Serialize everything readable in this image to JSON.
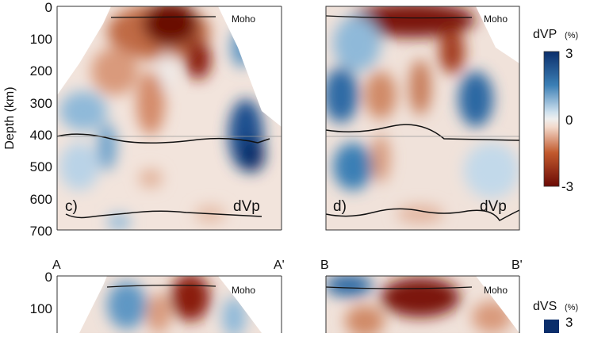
{
  "y_axis": {
    "label": "Depth (km)",
    "ticks": [
      "0",
      "100",
      "200",
      "300",
      "400",
      "500",
      "600",
      "700"
    ]
  },
  "bottom_y_ticks": [
    "0",
    "100"
  ],
  "panels": [
    {
      "id": "c",
      "label": "c)",
      "field": "dVp",
      "moho": "Moho"
    },
    {
      "id": "d",
      "label": "d)",
      "field": "dVp",
      "moho": "Moho"
    },
    {
      "id": "e",
      "start": "A",
      "end": "A'",
      "moho": "Moho"
    },
    {
      "id": "f",
      "start": "B",
      "end": "B'",
      "moho": "Moho"
    }
  ],
  "colorbar_p": {
    "title": "dVP",
    "unit": "(%)",
    "max": "3",
    "mid": "0",
    "min": "-3"
  },
  "colorbar_s": {
    "title": "dVS",
    "unit": "(%)",
    "max": "3"
  },
  "colors": {
    "fast": "#0b2e6b",
    "slow": "#6b0a05",
    "neutral": "#efefef"
  }
}
